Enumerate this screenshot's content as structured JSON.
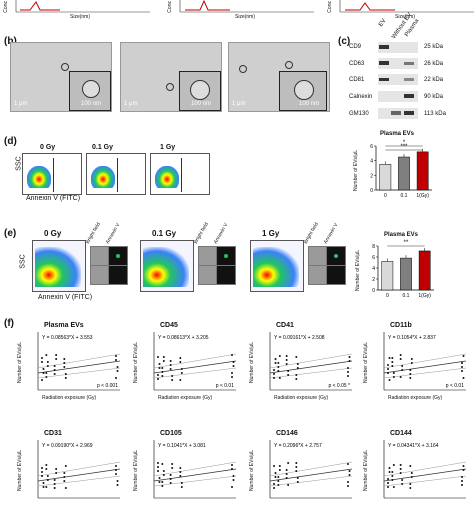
{
  "panel_c": {
    "col_labels": [
      "EV",
      "Without EV",
      "Plasma"
    ],
    "rows": [
      {
        "name": "CD9",
        "size": "25 kDa"
      },
      {
        "name": "CD63",
        "size": "26 kDa"
      },
      {
        "name": "CD81",
        "size": "22 kDa"
      },
      {
        "name": "Calnexin",
        "size": "90 kDa"
      },
      {
        "name": "GM130",
        "size": "113 kDa"
      }
    ]
  },
  "panel_a": {
    "xlabel": "Size(nm)"
  },
  "panel_b": {
    "scale_small": "1 μm",
    "scale_large": "100 nm"
  },
  "panel_d": {
    "conditions": [
      "0 Gy",
      "0.1 Gy",
      "1 Gy"
    ],
    "ylabel": "SSC",
    "xlabel": "Annexin V (FITC)",
    "bar_title": "Plasma EVs",
    "bar_ylabel": "Number of EVs/μL",
    "bar_sig": [
      "*",
      "***"
    ]
  },
  "panel_e": {
    "conditions": [
      "0 Gy",
      "0.1 Gy",
      "1 Gy"
    ],
    "ylabel": "SSC",
    "xlabel": "Annexin V (FITC)",
    "micro_labels": [
      "Bright field",
      "Annexin V"
    ],
    "bar_title": "Plasma EVs",
    "bar_ylabel": "Number of EVs/μL",
    "bar_sig": "**"
  },
  "panel_f": {
    "ylabel": "Number of EVs/μL",
    "xlabel": "Radiation exposure (Gy)",
    "plots": [
      {
        "title": "Plasma EVs",
        "eq": "Y = 0.08563*X + 3.553",
        "p": "p < 0.001"
      },
      {
        "title": "CD45",
        "eq": "Y = 0.08613*X + 3.205",
        "p": "p < 0.01"
      },
      {
        "title": "CD41",
        "eq": "Y = 0.09161*X + 2.508",
        "p": "p < 0.05 *"
      },
      {
        "title": "CD11b",
        "eq": "Y = 0.1054*X + 2.837",
        "p": "p < 0.01"
      },
      {
        "title": "CD31",
        "eq": "Y = 0.09190*X + 2.969"
      },
      {
        "title": "CD105",
        "eq": "Y = 0.1041*X + 3.081"
      },
      {
        "title": "CD146",
        "eq": "Y = 0.2096*X + 2.757"
      },
      {
        "title": "CD144",
        "eq": "Y = 0.04341*X + 3.164"
      }
    ]
  },
  "chart_data": [
    {
      "type": "bar",
      "categories": [
        "0",
        "0.1",
        "1"
      ],
      "values": [
        3.5,
        4.5,
        5.2
      ],
      "colors": [
        "#d9d9d9",
        "#7f7f7f",
        "#c00000"
      ],
      "title": "Plasma EVs",
      "ylabel": "Number of EVs/μL",
      "xlabel": "(Gy)",
      "ylim": [
        0,
        6
      ],
      "yticks": [
        0,
        2,
        4,
        6
      ]
    },
    {
      "type": "bar",
      "categories": [
        "0",
        "0.1",
        "1"
      ],
      "values": [
        5.2,
        5.8,
        7.1
      ],
      "colors": [
        "#d9d9d9",
        "#7f7f7f",
        "#c00000"
      ],
      "title": "Plasma EVs",
      "ylabel": "Number of EVs/μL",
      "xlabel": "(Gy)",
      "ylim": [
        0,
        8
      ],
      "yticks": [
        0,
        2,
        4,
        6,
        8
      ]
    }
  ],
  "colors": {
    "red": "#c00000",
    "grey": "#7f7f7f",
    "light": "#d9d9d9",
    "flow_green": "#22c55e"
  }
}
